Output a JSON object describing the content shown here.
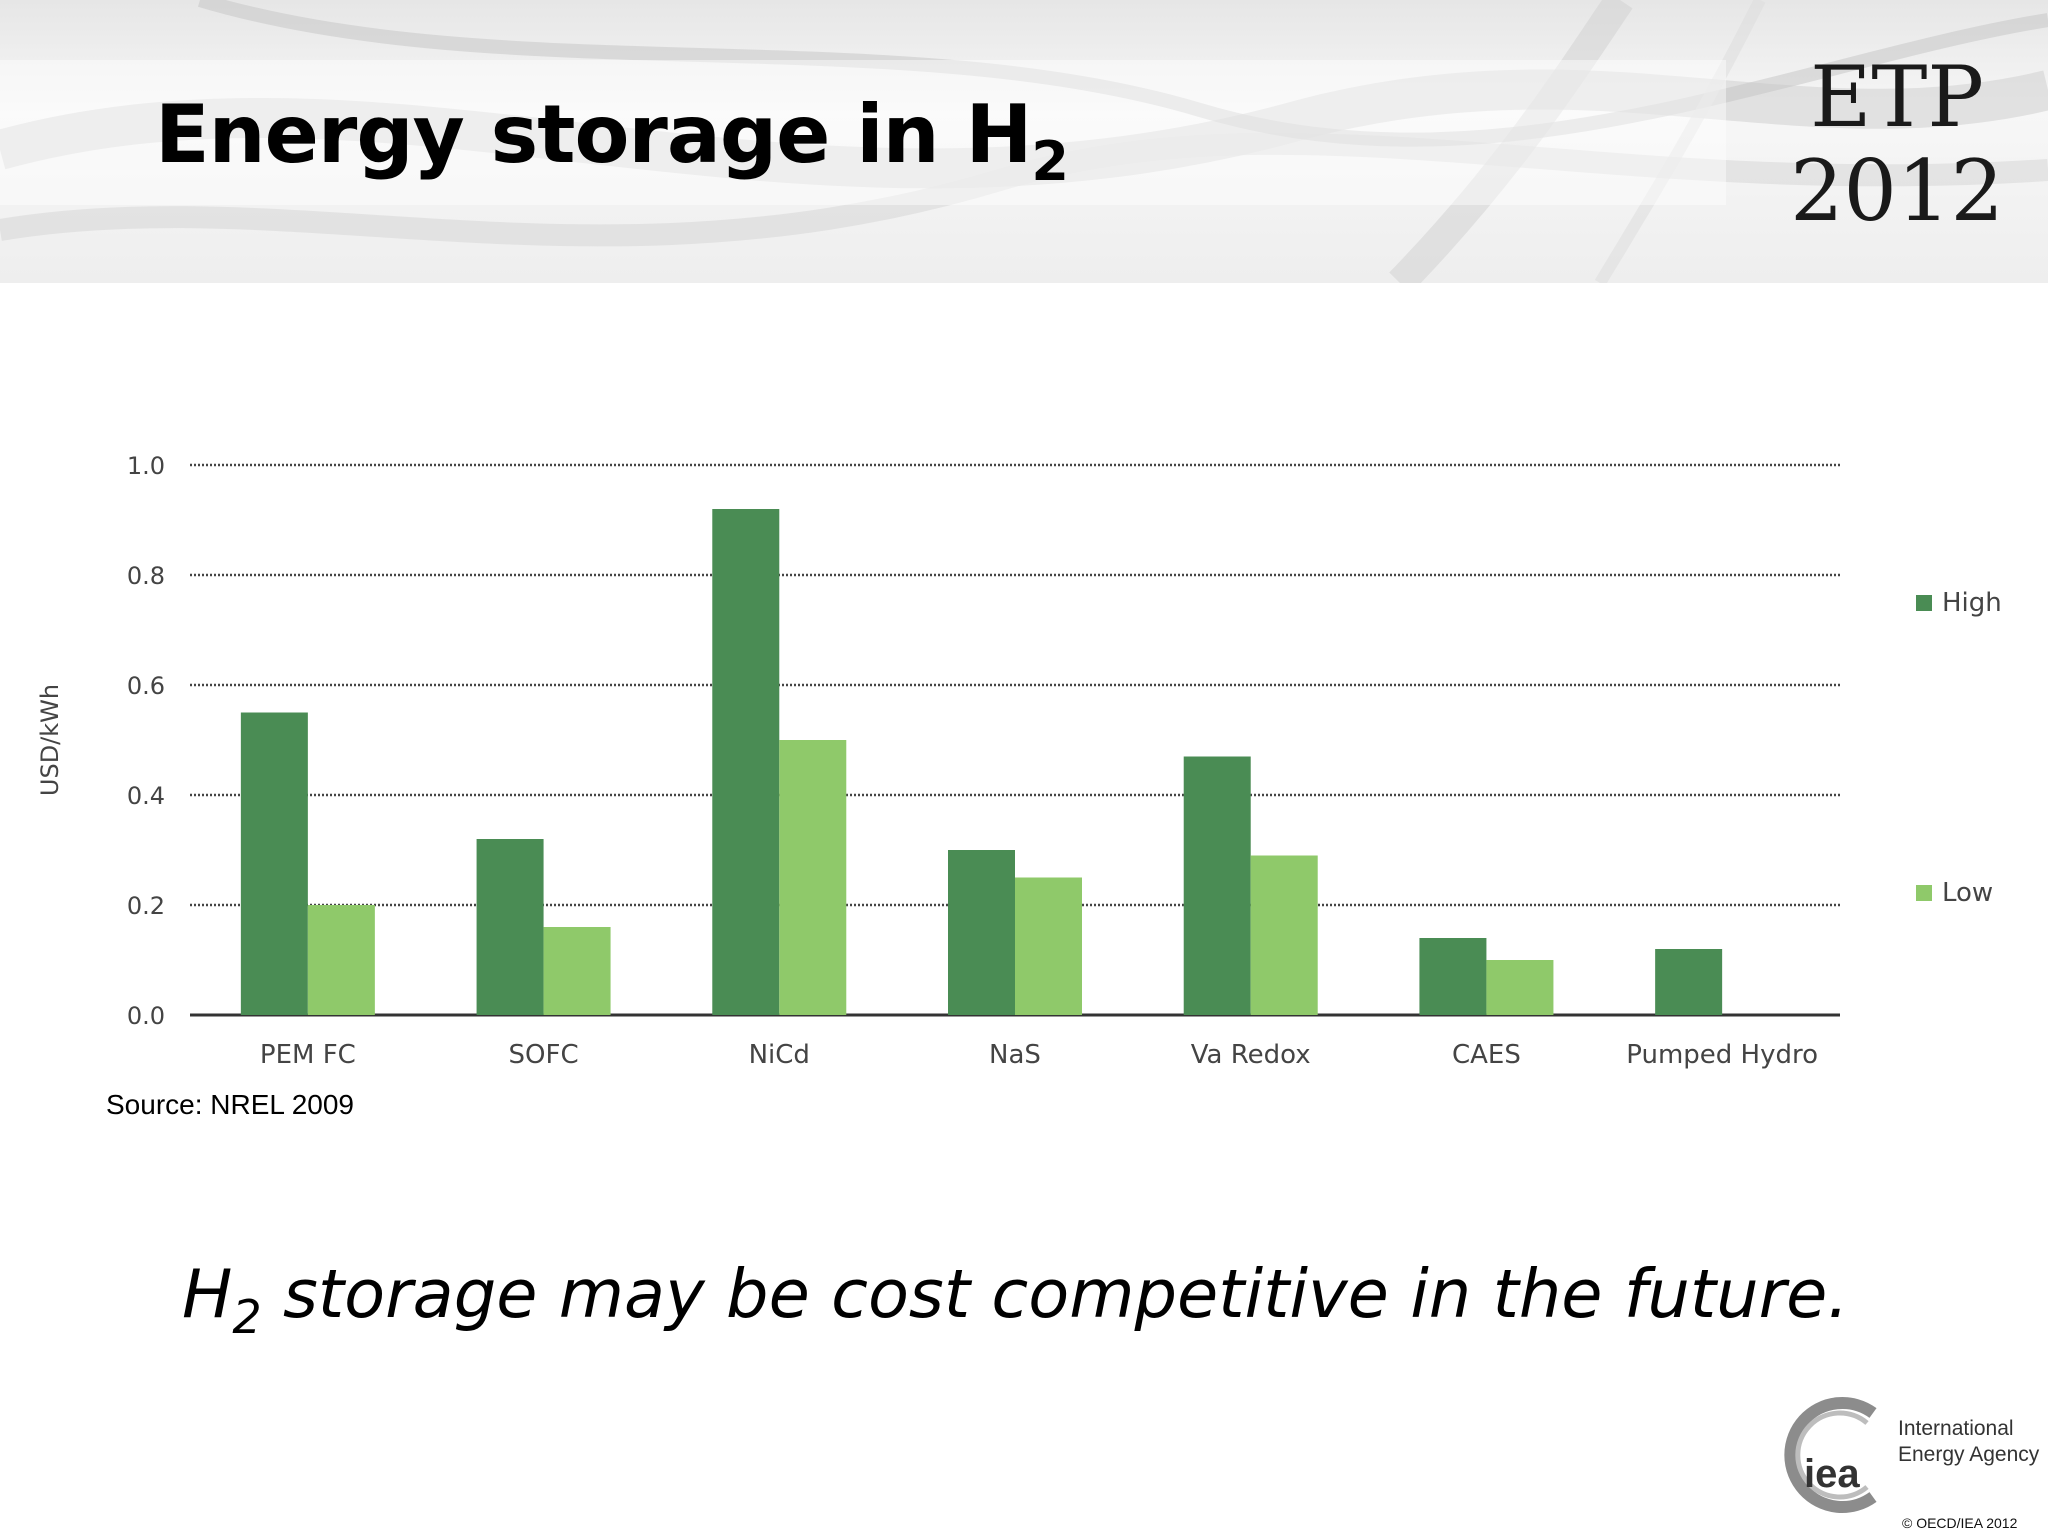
{
  "slide": {
    "title_main": "Energy storage in H",
    "title_sub": "2",
    "brand_line1": "ETP",
    "brand_line2": "2012",
    "source_text": "Source:  NREL 2009",
    "subtitle_sub": "2",
    "subtitle_h": "H",
    "subtitle_rest": " storage may be cost competitive in the future.",
    "logo_mark": "iea",
    "logo_name": "International Energy Agency",
    "copyright": "© OECD/IEA 2012"
  },
  "colors": {
    "high": "#4a8c54",
    "low": "#8fc96a",
    "gridline": "#444444",
    "axis": "#333333"
  },
  "chart_data": {
    "type": "bar",
    "title": "",
    "xlabel": "",
    "ylabel": "USD/kWh",
    "ylim": [
      0,
      1.0
    ],
    "yticks": [
      "0.0",
      "0.2",
      "0.4",
      "0.6",
      "0.8",
      "1.0"
    ],
    "grid": "dotted horizontal",
    "legend_position": "right",
    "categories": [
      "PEM FC",
      "SOFC",
      "NiCd",
      "NaS",
      "Va Redox",
      "CAES",
      "Pumped Hydro"
    ],
    "series": [
      {
        "name": "High",
        "values": [
          0.55,
          0.32,
          0.92,
          0.3,
          0.47,
          0.14,
          0.12
        ]
      },
      {
        "name": "Low",
        "values": [
          0.2,
          0.16,
          0.5,
          0.25,
          0.29,
          0.1,
          null
        ]
      }
    ]
  }
}
